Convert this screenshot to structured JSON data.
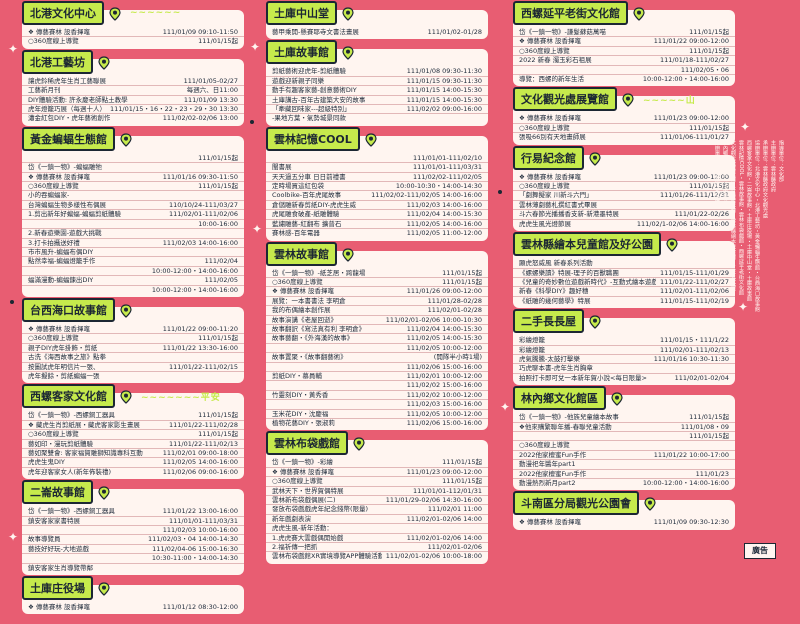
{
  "sections": [
    {
      "col": 1,
      "title": "北港文化中心",
      "pin": "2",
      "deco": "~~~~~~",
      "rows": [
        {
          "l": "❖ 傳藝賽林 設香揮竈",
          "r": "111/01/09 09:10-11:50"
        },
        {
          "l": "○360度線上導覽",
          "r": "111/01/15起"
        }
      ]
    },
    {
      "col": 1,
      "title": "北港工藝坊",
      "pin": "2",
      "rows": [
        {
          "l": "讓虎鈴稀虎年生肖工藝聯展",
          "r": "111/01/05-02/27"
        },
        {
          "l": "工藝新月刊",
          "r": "每週六、日11:00"
        },
        {
          "l": "DIY體驗活動: 許永慶老師點土教學",
          "r": "111/01/09 13:30"
        },
        {
          "l": "虎年燈籠巧展（每週十人）",
          "r": "111/01/15・16・22・23・29・30 13:30"
        },
        {
          "l": "瀟金紅包DIY・虎年藝術創作",
          "r": "111/02/02-02/06 13:00"
        }
      ]
    },
    {
      "col": 1,
      "title": "黃金蝙蝠生態館",
      "pin": "3",
      "rows": [
        {
          "l": "",
          "r": "111/01/15起"
        },
        {
          "l": "岱《一鎮一物》-蝙蝠雕牠",
          "r": ""
        },
        {
          "l": "❖ 傳藝賽林 設香揮竈",
          "r": "111/01/16 09:30-11:50"
        },
        {
          "l": "○360度線上導覽",
          "r": "111/01/15起"
        },
        {
          "l": "小的吞蝙蝠家-",
          "r": ""
        },
        {
          "l": "台灣蝙蝠生物多樣性布偶展",
          "r": "110/10/24-111/03/27"
        },
        {
          "l": "1.剪出新年好蝙蝠-蝙蝠剪紙體驗",
          "r": "111/02/01-111/02/06"
        },
        {
          "l": "",
          "r": "10:00-16:00"
        },
        {
          "l": "2.新春遊樂園-遊戲大挑戰",
          "r": ""
        },
        {
          "l": "3.打卡拍攝送好禮",
          "r": "111/02/03 14:00-16:00"
        },
        {
          "l": "市市風升-蝙蝠布偶DIY",
          "r": ""
        },
        {
          "l": "點然幸福-蝙蝠燈籠手作",
          "r": "111/02/04"
        },
        {
          "l": "",
          "r": "10:00-12:00・14:00-16:00"
        },
        {
          "l": "蝠滿漫動-蝙蝠鍊出DIY",
          "r": "111/02/05"
        },
        {
          "l": "",
          "r": "10:00-12:00・14:00-16:00"
        }
      ]
    },
    {
      "col": 1,
      "title": "台西海口故事館",
      "pin": "4",
      "rows": [
        {
          "l": "❖ 傳藝賽林 設香揮竈",
          "r": "111/01/22 09:00-11:20"
        },
        {
          "l": "○360度線上導覽",
          "r": "111/01/15起"
        },
        {
          "l": "親子DIY虎年掛飾・剪紙",
          "r": "111/01/22 13:30-16:00"
        },
        {
          "l": "古洗《海西故事之旅》點拳",
          "r": ""
        },
        {
          "l": "按圖試虎年明信片一張、",
          "r": "111/01/22-111/02/15"
        },
        {
          "l": "虎年擬餘・剪紙蝙蝠一張",
          "r": ""
        }
      ]
    },
    {
      "col": 1,
      "title": "西螺客家文化館",
      "pin": "5",
      "deco": "~~~~~~~平安",
      "rows": [
        {
          "l": "岱《一鎮一物》-西螺銅工器具",
          "r": "111/01/15起"
        },
        {
          "l": "❖ 藏虎生肖剪紙展・藏虎客家影生畫展",
          "r": "111/01/22-111/02/28"
        },
        {
          "l": "○360度線上導覽",
          "r": "111/01/15起"
        },
        {
          "l": "藝如印・漫玩剪紙體驗",
          "r": "111/01/22-111/02/13"
        },
        {
          "l": "藝如聚雙會: 客家福賀雕獅知識專科互動",
          "r": "111/02/01 09:00-18:00"
        },
        {
          "l": "虎虎生鬼DIY",
          "r": "111/02/05 14:00-16:00"
        },
        {
          "l": "虎年迎客家女人(新年佈裝禮)",
          "r": "111/02/06 09:00-16:00"
        }
      ]
    },
    {
      "col": 1,
      "title": "二崙故事館",
      "pin": "6",
      "rows": [
        {
          "l": "岱《一鎮一物》-西螺銅工器具",
          "r": "111/01/22 13:00-16:00"
        },
        {
          "l": "鎮安客家家書特展",
          "r": "111/01/01-111/03/31"
        },
        {
          "l": "",
          "r": "111/02/03 10:00-16:00"
        },
        {
          "l": "故事導覽員",
          "r": "111/02/03・04 14:00-14:30"
        },
        {
          "l": "藝技好好玩-大地遊戲",
          "r": "111/02/04-06 15:00-16:30"
        },
        {
          "l": "",
          "r": "10:30-11:00・14:00-14:30"
        },
        {
          "l": "鎮安客家生肖導覽帶鄰",
          "r": ""
        }
      ]
    },
    {
      "col": 1,
      "title": "土庫庄役場",
      "pin": "7",
      "rows": [
        {
          "l": "❖ 傳藝賽林 設香揮竈",
          "r": "111/01/12 08:30-12:00"
        }
      ]
    },
    {
      "col": 2,
      "title": "土庫中山堂",
      "pin": "7",
      "rows": [
        {
          "l": "藝甲乘開-懸賽耶寺文書法畫展",
          "r": "111/01/02-01/28"
        }
      ]
    },
    {
      "col": 2,
      "title": "土庫故事館",
      "pin": "7",
      "rows": [
        {
          "l": "剪紙藝術迎虎年-剪紙體驗",
          "r": "111/01/08 09:30-11:30"
        },
        {
          "l": "遊戲迎新親子同樂",
          "r": "111/01/15 09:30-11:30"
        },
        {
          "l": "動手有趣客家藝-創意藝術DIY",
          "r": "111/01/15 14:00-15:30"
        },
        {
          "l": "土庫講古-百年古建築大安的故事",
          "r": "111/01/15 14:00-15:30"
        },
        {
          "l": "「牽藏回味家---超級特別」",
          "r": "111/02/02 09:00-16:00"
        },
        {
          "l": "-果地方葉・氣勢城景同款",
          "r": ""
        }
      ]
    },
    {
      "col": 2,
      "title": "雲林記憶COOL",
      "pin": "8",
      "rows": [
        {
          "l": "",
          "r": "111/01/01-111/02/10"
        },
        {
          "l": "闡書展",
          "r": "111/01/01-111/03/31"
        },
        {
          "l": "天天過五分車 日日前禮書",
          "r": "111/02/02-111/02/05"
        },
        {
          "l": "定時場買這紅包袋",
          "r": "10:00-10:30・14:00-14:30"
        },
        {
          "l": "Coolbike-百年虎尾故事",
          "r": "111/02/02-111/02/05 14:00-16:00"
        },
        {
          "l": "倉儲雕新春剪紙DIY-虎虎生威",
          "r": "111/02/03 14:00-16:00"
        },
        {
          "l": "虎尾雕食破產-紙雕體驗",
          "r": "111/02/04 14:00-15:30"
        },
        {
          "l": "藍繡雕藝-紅翻布 擴普石",
          "r": "111/02/05 14:00-16:00"
        },
        {
          "l": "賽林感-百年電器",
          "r": "111/02/05 11:00-12:00"
        }
      ]
    },
    {
      "col": 2,
      "title": "雲林故事館",
      "pin": "9",
      "rows": [
        {
          "l": "岱《一鎮一物》-紙芝居・跨龍場",
          "r": "111/01/15起"
        },
        {
          "l": "○360度線上導覽",
          "r": "111/01/15起"
        },
        {
          "l": "❖ 傳藝賽林 設香揮竈",
          "r": "111/01/26 09:00-12:00"
        },
        {
          "l": "展覽：一本書書法 李明倉",
          "r": "111/01/28-02/28"
        },
        {
          "l": "我的布偶繪本創作展",
          "r": "111/02/01-02/28"
        },
        {
          "l": "故事演講《老屋回逝》",
          "r": "111/02/01-02/06 10:00-10:30"
        },
        {
          "l": "故事翻訳《寫法真有利 李明倉》",
          "r": "111/02/04 14:00-15:30"
        },
        {
          "l": "故事藝翻・《外海漢的故事》",
          "r": "111/02/05 14:00-15:30"
        },
        {
          "l": "",
          "r": "111/02/05 10:00-12:00"
        },
        {
          "l": "故事置聚・《故事翻藝術》",
          "r": "(開隊半小時1場)"
        },
        {
          "l": "",
          "r": "111/02/06 15:00-16:00"
        },
        {
          "l": "剪紙DIY・慕員輔",
          "r": "111/02/01 10:00-12:00"
        },
        {
          "l": "",
          "r": "111/02/02 15:00-16:00"
        },
        {
          "l": "竹靈刻DIY・黃秀香",
          "r": "111/02/02 10:00-12:00"
        },
        {
          "l": "",
          "r": "111/02/03 15:00-16:00"
        },
        {
          "l": "玉米花DIY・沈慶福",
          "r": "111/02/05 10:00-12:00"
        },
        {
          "l": "植物花藝DIY・張淑莉",
          "r": "111/02/06 15:00-16:00"
        }
      ]
    },
    {
      "col": 2,
      "title": "雲林布袋戲館",
      "pin": "9",
      "rows": [
        {
          "l": "岱《一鎮一物》-彩繪",
          "r": "111/01/15起"
        },
        {
          "l": "❖ 傳藝賽林 設香揮竈",
          "r": "111/01/23 09:00-12:00"
        },
        {
          "l": "○360度線上導覽",
          "r": "111/01/15起"
        },
        {
          "l": "武林天下・世界賀偶特展",
          "r": "111/01/01-112/01/31"
        },
        {
          "l": "雲林新布袋戲偶展(二)",
          "r": "111/01/29-02/06 14:30-16:00"
        },
        {
          "l": "發放布袋戲戲虎年紀念錢幣(限量)",
          "r": "111/02/01 11:00"
        },
        {
          "l": "新年戲劇表演",
          "r": "111/02/01-02/06 14:00"
        },
        {
          "l": "虎虎生風-新年活動：",
          "r": ""
        },
        {
          "l": "1.虎虎賽大雲戲偶開始戲",
          "r": "111/02/01-02/06 14:00"
        },
        {
          "l": "2.福祈傳一把抓",
          "r": "111/02/01-02/06"
        },
        {
          "l": "雲林布袋戲館XR實境導覽APP體驗活動",
          "r": "111/02/01-02/06 10:00-18:00"
        }
      ]
    },
    {
      "col": 3,
      "title": "西螺延平老街文化館",
      "pin": "10",
      "rows": [
        {
          "l": "岱《一鎮一物》-謙髮蘇菇萬喵",
          "r": "111/01/15起"
        },
        {
          "l": "❖ 傳藝賽林 設香揮竈",
          "r": "111/01/22 09:00-12:00"
        },
        {
          "l": "○360度線上導覽",
          "r": "111/01/15起"
        },
        {
          "l": "2022 新春 濁玉彩石祖展",
          "r": "111/01/18-111/02/27"
        },
        {
          "l": "",
          "r": "111/02/05・06"
        },
        {
          "l": "導覽：西螺的新年生活",
          "r": "10:00-12:00・14:00-16:00"
        }
      ]
    },
    {
      "col": 3,
      "title": "文化觀光處展覽館",
      "pin": "11",
      "deco": "~~~~~山",
      "rows": [
        {
          "l": "❖ 傳藝賽林 設香揮竈",
          "r": "111/01/23 09:00-12:00"
        },
        {
          "l": "○360度線上導覽",
          "r": "111/01/15起"
        },
        {
          "l": "張吸66別有天地畫師展",
          "r": "111/01/06-111/01/27"
        }
      ]
    },
    {
      "col": 3,
      "title": "行易紀念館",
      "pin": "12",
      "rows": [
        {
          "l": "❖ 傳藝賽林 設香揮竈",
          "r": "111/01/23 09:00-12:00"
        },
        {
          "l": "○360度線上導覽",
          "r": "111/01/15起"
        },
        {
          "l": "「劇舞擬家 川新斗六門」",
          "r": "111/01/26-111/12/31"
        },
        {
          "l": "雲林薄劇藝札撰紅書式畢展",
          "r": ""
        },
        {
          "l": "斗六春節光播播香支新-新港墨特展",
          "r": "111/01/22-02/26"
        },
        {
          "l": "虎虎生風光燈節展",
          "r": "111/02/1-02/06 14:00-16:00"
        }
      ]
    },
    {
      "col": 3,
      "title": "雲林縣繪本兒童館及好公園",
      "pin": "13",
      "rows": [
        {
          "l": "顯虎怒威風 新春系列活動",
          "r": ""
        },
        {
          "l": "《螺螺樂讀》特展-理子的百獸職團",
          "r": "111/01/15-111/01/29"
        },
        {
          "l": "《兒童的奇妙數位遊戲新時代》-互動式繪本遊戲",
          "r": "111/01/22-111/02/27"
        },
        {
          "l": "新春《科學DIY》趣好穗",
          "r": "111/02/01-111/02/06"
        },
        {
          "l": "《紙雕的幾何藝學》特展",
          "r": "111/01/15-111/02/19"
        }
      ]
    },
    {
      "col": 3,
      "title": "二手長長屋",
      "pin": "13",
      "rows": [
        {
          "l": "彩繪燈籠",
          "r": "111/01/15・111/1/22"
        },
        {
          "l": "彩繪燈籠",
          "r": "111/02/01-111/02/13"
        },
        {
          "l": "虎氣騰騰-太鼓打擊樂",
          "r": "111/01/16 10:30-11:30"
        },
        {
          "l": "巧虎聊本書-虎年生肖胸章",
          "r": ""
        },
        {
          "l": "拍照打卡即可兌一本新年賀小說<每日限量>",
          "r": "111/02/01-02/04"
        }
      ]
    },
    {
      "col": 3,
      "title": "林內鄉文化館區",
      "pin": "14",
      "rows": [
        {
          "l": "岱《一鎮一物》-他族兒童繪本故事",
          "r": "111/01/15起"
        },
        {
          "l": "❖他來購繁聯年播-春聯兒童活動",
          "r": "111/01/08・09"
        },
        {
          "l": "",
          "r": "111/01/15起"
        },
        {
          "l": "○360度線上導覽",
          "r": ""
        },
        {
          "l": "2022他家檀蜜Fun手作",
          "r": "111/01/22 10:00-17:00"
        },
        {
          "l": "動漫祀年醬年part1",
          "r": ""
        },
        {
          "l": "2022他家檀蜜Fun手作",
          "r": "111/01/23"
        },
        {
          "l": "動漫熱烈新月part2",
          "r": "10:00-12:00・14:00-16:00"
        }
      ]
    },
    {
      "col": 3,
      "title": "斗南區分局觀光公園會",
      "pin": "15",
      "rows": [
        {
          "l": "❖ 傳藝賽林 設香揮竈",
          "r": "111/01/09 09:30-12:30"
        }
      ]
    }
  ],
  "side_text": [
    "指導單位：文化部",
    "主辦單位：雲林縣政府",
    "承辦單位：雲林縣政府文化觀光處",
    "協辦單位：北港文化中心・北港工藝坊・黃金蝙蝠生態館・台西海口故事館",
    "西螺客家文化館・二崙故事館・土庫庄役場・土庫中山堂・土庫故事館",
    "雲林記憶COOL・雲林故事館・雲林布袋戲館・西螺延平老街文化館",
    "文化觀光處展覽館・行易紀念館・雲林縣繪本兒童館・二手長長屋",
    "林內鄉文化館區・斗南區分局",
    "主辦單位保留活動變更之權利"
  ],
  "ad_label": "廣告"
}
